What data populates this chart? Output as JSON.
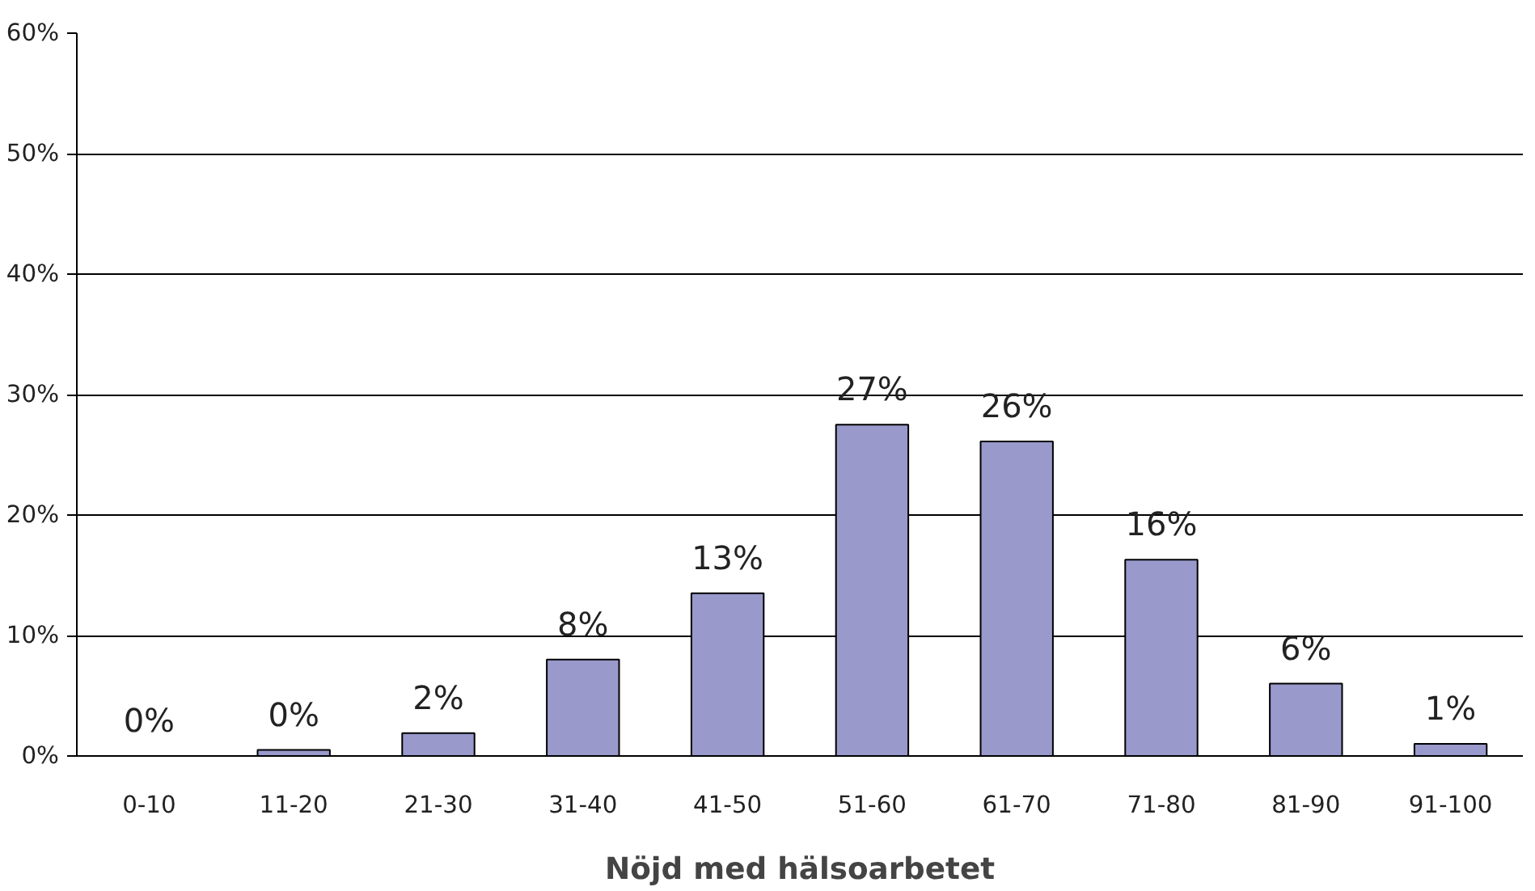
{
  "chart_data": {
    "type": "bar",
    "xlabel": "Nöjd med hälsoarbetet",
    "categories": [
      "0-10",
      "11-20",
      "21-30",
      "31-40",
      "41-50",
      "51-60",
      "61-70",
      "71-80",
      "81-90",
      "91-100"
    ],
    "values": [
      0,
      0.5,
      1.9,
      8.0,
      13.5,
      27.5,
      26.1,
      16.3,
      6.0,
      1.0
    ],
    "value_labels": [
      "0%",
      "0%",
      "2%",
      "8%",
      "13%",
      "27%",
      "26%",
      "16%",
      "6%",
      "1%"
    ],
    "color": "#9999cc",
    "ylim": [
      0,
      60
    ],
    "yticks": [
      {
        "value": 0,
        "label": "0%"
      },
      {
        "value": 10,
        "label": "10%"
      },
      {
        "value": 20,
        "label": "20%"
      },
      {
        "value": 30,
        "label": "30%"
      },
      {
        "value": 40,
        "label": "40%"
      },
      {
        "value": 50,
        "label": "50%"
      },
      {
        "value": 60,
        "label": "60%"
      }
    ],
    "grid": "y"
  }
}
